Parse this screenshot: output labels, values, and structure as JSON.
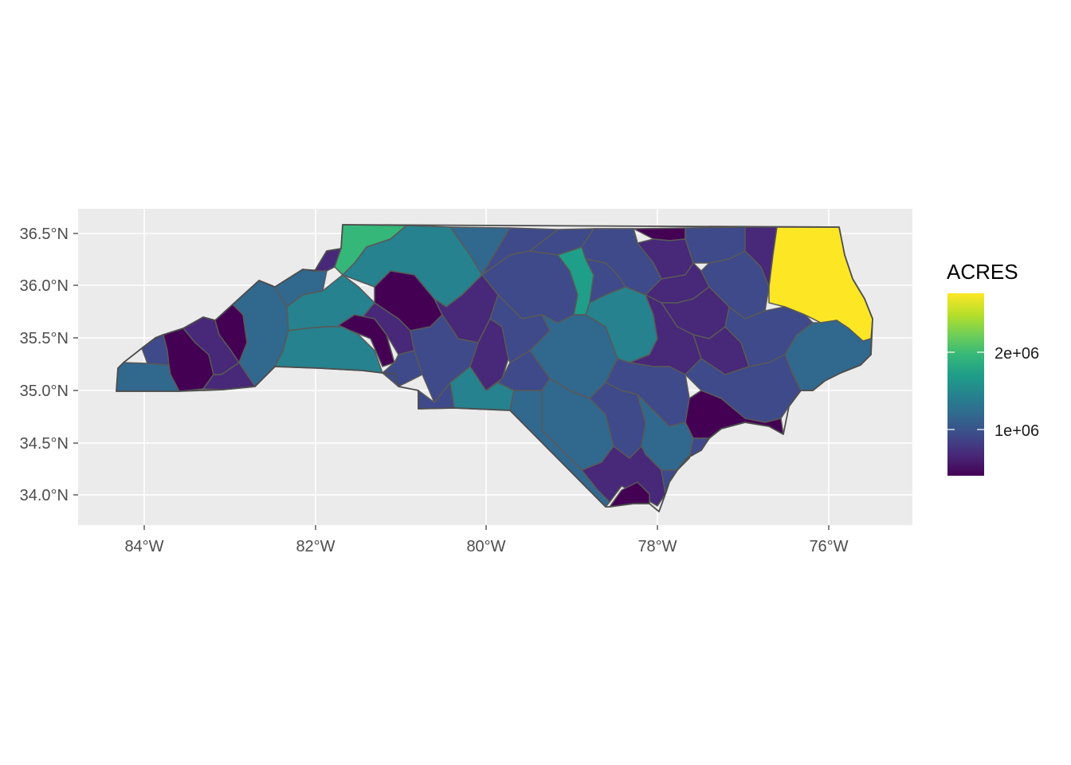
{
  "map": {
    "x_ticks": [
      "84°W",
      "82°W",
      "80°W",
      "78°W",
      "76°W"
    ],
    "y_ticks": [
      "36.5°N",
      "36.0°N",
      "35.5°N",
      "35.0°N",
      "34.5°N",
      "34.0°N"
    ]
  },
  "legend": {
    "title": "ACRES",
    "labels": [
      "2e+06",
      "1e+06"
    ]
  },
  "colors": {
    "panel_background": "#ebebeb",
    "grid": "#ffffff",
    "border": "#595959",
    "viridis": [
      "#440154",
      "#482878",
      "#3e4a89",
      "#31688e",
      "#26828e",
      "#1f9e89",
      "#35b779",
      "#6ece58",
      "#b5de2b",
      "#fde725"
    ]
  }
}
